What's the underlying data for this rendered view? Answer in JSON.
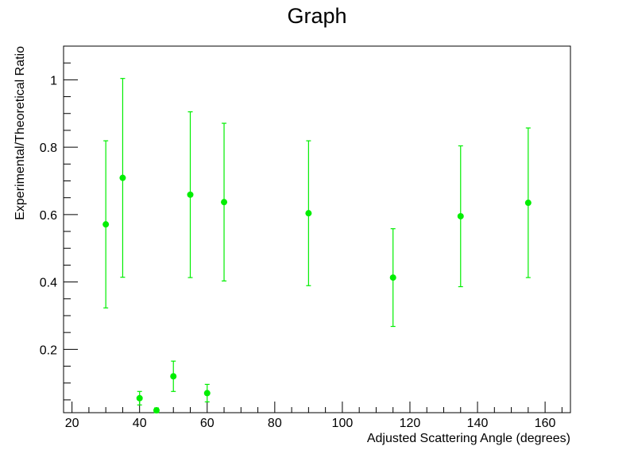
{
  "chart_data": {
    "type": "scatter",
    "title": "Graph",
    "xlabel": "Adjusted Scattering Angle (degrees)",
    "ylabel": "Experimental/Theoretical Ratio",
    "xlim": [
      17.5,
      167.5
    ],
    "ylim": [
      0.012,
      1.1
    ],
    "x_ticks": [
      20,
      40,
      60,
      80,
      100,
      120,
      140,
      160
    ],
    "y_ticks": [
      0.2,
      0.4,
      0.6,
      0.8,
      1
    ],
    "x_tick_labels": [
      "20",
      "40",
      "60",
      "80",
      "100",
      "120",
      "140",
      "160"
    ],
    "y_tick_labels": [
      "0.2",
      "0.4",
      "0.6",
      "0.8",
      "1"
    ],
    "grid": false,
    "legend": "none",
    "color": "#00ee00",
    "series": [
      {
        "points": [
          {
            "x": 30,
            "y": 0.571,
            "err": 0.248
          },
          {
            "x": 35,
            "y": 0.709,
            "err": 0.295
          },
          {
            "x": 40,
            "y": 0.055,
            "err": 0.02
          },
          {
            "x": 45,
            "y": 0.019,
            "err": 0.007
          },
          {
            "x": 50,
            "y": 0.12,
            "err": 0.045
          },
          {
            "x": 55,
            "y": 0.659,
            "err": 0.246
          },
          {
            "x": 60,
            "y": 0.07,
            "err": 0.026
          },
          {
            "x": 65,
            "y": 0.637,
            "err": 0.234
          },
          {
            "x": 90,
            "y": 0.604,
            "err": 0.215
          },
          {
            "x": 115,
            "y": 0.413,
            "err": 0.145
          },
          {
            "x": 135,
            "y": 0.595,
            "err": 0.209
          },
          {
            "x": 155,
            "y": 0.635,
            "err": 0.222
          }
        ]
      }
    ]
  }
}
